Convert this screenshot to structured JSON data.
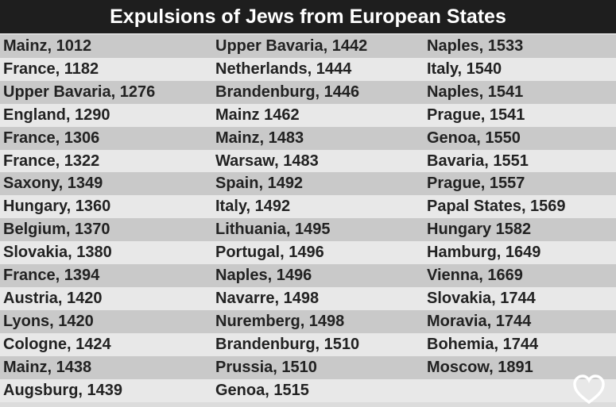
{
  "title": "Expulsions of Jews from European States",
  "columns": [
    [
      "Mainz, 1012",
      "France, 1182",
      "Upper Bavaria, 1276",
      "England, 1290",
      "France, 1306",
      "France, 1322",
      "Saxony, 1349",
      "Hungary, 1360",
      "Belgium, 1370",
      "Slovakia, 1380",
      "France, 1394",
      "Austria, 1420",
      "Lyons, 1420",
      "Cologne, 1424",
      "Mainz, 1438",
      "Augsburg, 1439"
    ],
    [
      "Upper Bavaria, 1442",
      "Netherlands, 1444",
      "Brandenburg, 1446",
      "Mainz 1462",
      "Mainz, 1483",
      "Warsaw, 1483",
      "Spain, 1492",
      "Italy, 1492",
      "Lithuania, 1495",
      "Portugal, 1496",
      "Naples, 1496",
      "Navarre, 1498",
      "Nuremberg, 1498",
      "Brandenburg, 1510",
      "Prussia, 1510",
      "Genoa, 1515"
    ],
    [
      "Naples, 1533",
      "Italy, 1540",
      "Naples, 1541",
      "Prague, 1541",
      "Genoa, 1550",
      "Bavaria, 1551",
      "Prague, 1557",
      "Papal States, 1569",
      "Hungary 1582",
      "Hamburg, 1649",
      "Vienna, 1669",
      "Slovakia, 1744",
      "Moravia, 1744",
      "Bohemia, 1744",
      "Moscow, 1891"
    ]
  ]
}
